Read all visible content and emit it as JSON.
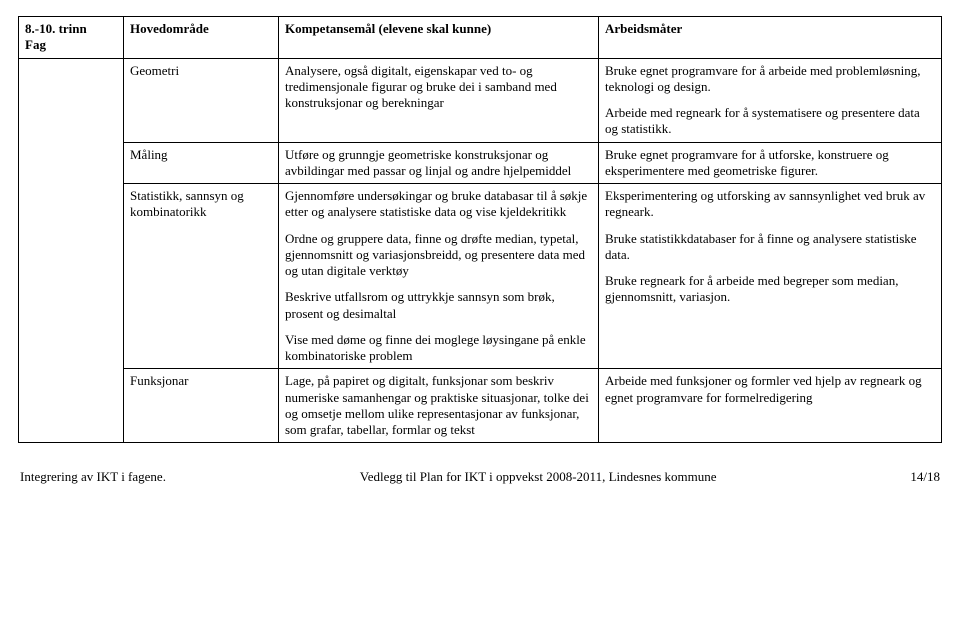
{
  "header": {
    "fag": "8.-10. trinn\nFag",
    "hoved": "Hovedområde",
    "komp": "Kompetansemål (elevene skal kunne)",
    "arb": "Arbeidsmåter"
  },
  "rows": [
    {
      "hoved": "Geometri",
      "komp": [
        "Analysere, også digitalt, eigenskapar ved to- og tredimensjonale figurar og bruke dei i samband med konstruksjonar og berekningar"
      ],
      "arb": [
        "Bruke egnet programvare for å arbeide med problemløsning, teknologi og design.",
        "Arbeide med regneark for å systematisere og presentere data og statistikk."
      ]
    },
    {
      "hoved": "Måling",
      "komp": [
        "Utføre og grunngje geometriske konstruksjonar og avbildingar med passar og linjal og andre hjelpemiddel"
      ],
      "arb": [
        "Bruke egnet programvare for å utforske, konstruere og eksperimentere med geometriske figurer."
      ]
    },
    {
      "hoved": "Statistikk, sannsyn og kombinatorikk",
      "komp": [
        "Gjennomføre undersøkingar og bruke databasar til å søkje etter og analysere statistiske data og vise kjeldekritikk",
        "Ordne og gruppere data, finne og drøfte median, typetal, gjennomsnitt og variasjonsbreidd, og presentere data med og utan digitale verktøy",
        "Beskrive utfallsrom og uttrykkje sannsyn som brøk, prosent og desimaltal",
        "Vise med døme og finne dei moglege løysingane på enkle kombinatoriske problem"
      ],
      "arb": [
        "Eksperimentering og utforsking av sannsynlighet ved bruk av regneark.",
        "Bruke statistikkdatabaser for å finne og analysere statistiske data.",
        "Bruke regneark for å arbeide med begreper som median, gjennomsnitt, variasjon."
      ]
    },
    {
      "hoved": "Funksjonar",
      "komp": [
        "Lage, på papiret og digitalt, funksjonar som beskriv numeriske samanhengar og praktiske situasjonar, tolke dei og omsetje mellom ulike representasjonar av funksjonar, som grafar, tabellar, formlar og tekst"
      ],
      "arb": [
        "Arbeide med funksjoner og formler ved hjelp av regneark og egnet programvare for formelredigering"
      ]
    }
  ],
  "footer": {
    "left": "Integrering av IKT i fagene.",
    "center": "Vedlegg til Plan for IKT i oppvekst 2008-2011, Lindesnes kommune",
    "right": "14/18"
  }
}
